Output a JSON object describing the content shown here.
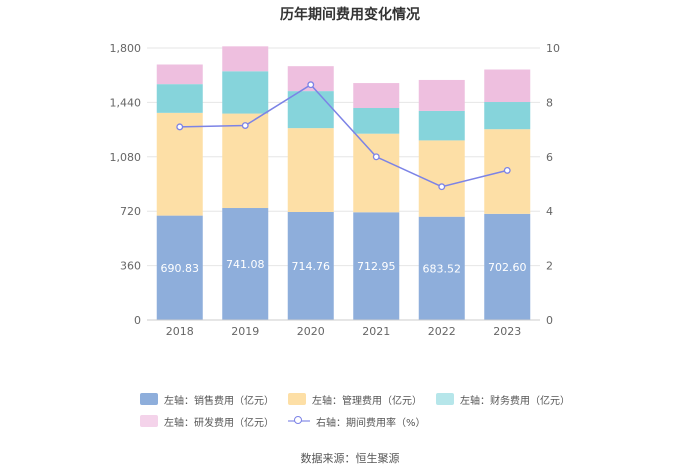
{
  "chart_data": {
    "type": "bar",
    "stacked": true,
    "title": "历年期间费用变化情况",
    "categories": [
      "2018",
      "2019",
      "2020",
      "2021",
      "2022",
      "2023"
    ],
    "y_left": {
      "ylim": [
        0,
        1800
      ],
      "ticks": [
        "0",
        "360",
        "720",
        "1,080",
        "1,440",
        "1,800"
      ],
      "tick_values": [
        0,
        360,
        720,
        1080,
        1440,
        1800
      ]
    },
    "y_right": {
      "ylim": [
        0,
        10
      ],
      "ticks": [
        "0",
        "2",
        "4",
        "6",
        "8",
        "10"
      ],
      "tick_values": [
        0,
        2,
        4,
        6,
        8,
        10
      ]
    },
    "grid": true,
    "series": [
      {
        "name": "左轴：销售费用（亿元）",
        "axis": "left",
        "color": "#8eaedb",
        "values": [
          690.83,
          741.08,
          714.76,
          712.95,
          683.52,
          702.6
        ],
        "labels": [
          "690.83",
          "741.08",
          "714.76",
          "712.95",
          "683.52",
          "702.60"
        ]
      },
      {
        "name": "左轴：管理费用（亿元）",
        "axis": "left",
        "color": "#fddfa6",
        "values": [
          680,
          625,
          555,
          520,
          505,
          560
        ]
      },
      {
        "name": "左轴：财务费用（亿元）",
        "axis": "left",
        "color": "#86d4db",
        "values": [
          190,
          280,
          245,
          170,
          195,
          180
        ]
      },
      {
        "name": "左轴：研发费用（亿元）",
        "axis": "left",
        "color": "#eebfdf",
        "values": [
          130,
          165,
          165,
          165,
          205,
          215
        ]
      },
      {
        "name": "右轴：期间费用率（%）",
        "axis": "right",
        "type": "line",
        "color": "#7c83e6",
        "values": [
          7.1,
          7.15,
          8.65,
          6.0,
          4.9,
          5.5
        ]
      }
    ]
  },
  "legend": {
    "rows": [
      [
        "左轴：销售费用（亿元）",
        "左轴：管理费用（亿元）",
        "左轴：财务费用（亿元）"
      ],
      [
        "左轴：研发费用（亿元）",
        "右轴：期间费用率（%）"
      ]
    ]
  },
  "source": "数据来源：恒生聚源"
}
